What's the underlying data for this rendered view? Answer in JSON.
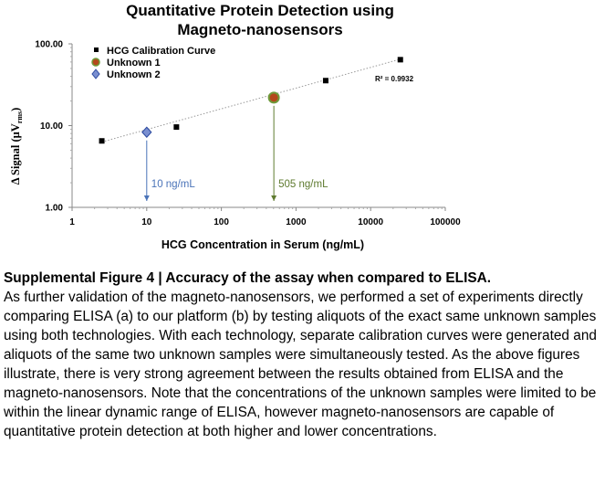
{
  "chart_data": {
    "type": "scatter",
    "title_line1": "Quantitative Protein Detection using",
    "title_line2": "Magneto-nanosensors",
    "xlabel": "HCG Concentration in Serum (ng/mL)",
    "ylabel_prefix": "Δ Signal (μV",
    "ylabel_sub": "rms",
    "ylabel_suffix": ")",
    "x_scale": "log",
    "y_scale": "log",
    "xlim": [
      1,
      100000
    ],
    "ylim": [
      1,
      100
    ],
    "x_ticks": [
      "1",
      "10",
      "100",
      "1000",
      "10000",
      "100000"
    ],
    "y_ticks": [
      "1.00",
      "10.00",
      "100.00"
    ],
    "grid": false,
    "legend_position": "top-left",
    "series": [
      {
        "name": "HCG Calibration Curve",
        "marker": "square",
        "color": "#000000",
        "x": [
          2.5,
          25,
          2500,
          25000
        ],
        "y": [
          6.5,
          9.6,
          35.5,
          64
        ]
      },
      {
        "name": "Unknown 1",
        "marker": "circle",
        "color": "#b4481c",
        "edge_color": "#6e9a3a",
        "x": [
          505
        ],
        "y": [
          22
        ]
      },
      {
        "name": "Unknown 2",
        "marker": "diamond",
        "color": "#7a8fd0",
        "edge_color": "#2c4aa0",
        "x": [
          10
        ],
        "y": [
          8.3
        ]
      }
    ],
    "trendline": {
      "x": [
        2.5,
        25000
      ],
      "y": [
        6.3,
        65
      ],
      "style": "dotted",
      "color": "#999999"
    },
    "r_squared_label": "R² = 0.9932",
    "annotations": [
      {
        "text": "10 ng/mL",
        "x": 10,
        "color": "#4a73b8"
      },
      {
        "text": "505 ng/mL",
        "x": 505,
        "color": "#5e7a2f"
      }
    ]
  },
  "caption": {
    "title": "Supplemental Figure 4 | Accuracy of the assay when compared to ELISA.",
    "body": "As further validation of the magneto-nanosensors, we performed a set of experiments directly comparing ELISA (a) to our platform (b) by testing aliquots of the exact same unknown samples using both technologies.  With each technology, separate calibration curves were generated and aliquots of the same two unknown samples were simultaneously tested.  As the above figures illustrate, there is very strong agreement between the results obtained from ELISA and the magneto-nanosensors.  Note that the concentrations of the unknown samples were limited to be within the linear dynamic range of ELISA, however magneto-nanosensors are capable of quantitative protein detection at both higher and lower concentrations."
  }
}
